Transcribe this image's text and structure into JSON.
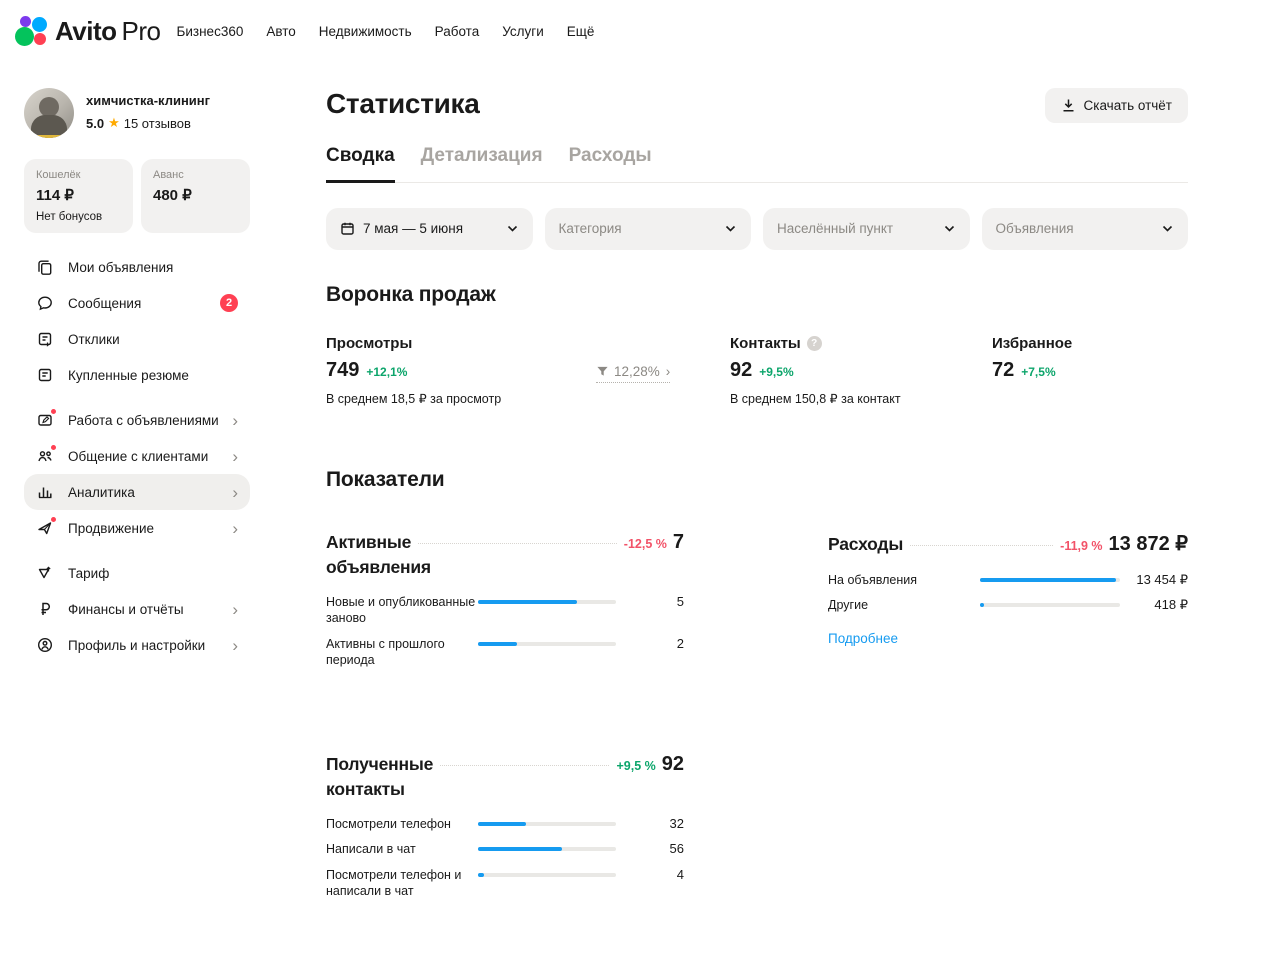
{
  "topnav": {
    "logo": {
      "brand": "Avito",
      "suffix": "Pro"
    },
    "items": [
      "Бизнес360",
      "Авто",
      "Недвижимость",
      "Работа",
      "Услуги",
      "Ещё"
    ]
  },
  "sidebar": {
    "profile": {
      "name": "химчистка-клининг",
      "rating": "5.0",
      "reviews": "15 отзывов"
    },
    "wallet": {
      "label": "Кошелёк",
      "value": "114 ₽",
      "note": "Нет бонусов"
    },
    "advance": {
      "label": "Аванс",
      "value": "480 ₽"
    },
    "menu": [
      {
        "label": "Мои объявления"
      },
      {
        "label": "Сообщения",
        "badge": "2"
      },
      {
        "label": "Отклики"
      },
      {
        "label": "Купленные резюме"
      },
      {
        "label": "Работа с объявлениями"
      },
      {
        "label": "Общение с клиентами"
      },
      {
        "label": "Аналитика"
      },
      {
        "label": "Продвижение"
      },
      {
        "label": "Тариф"
      },
      {
        "label": "Финансы и отчёты"
      },
      {
        "label": "Профиль и настройки"
      }
    ]
  },
  "header": {
    "title": "Статистика",
    "download_label": "Скачать отчёт"
  },
  "tabs": [
    {
      "label": "Сводка"
    },
    {
      "label": "Детализация"
    },
    {
      "label": "Расходы"
    }
  ],
  "filters": [
    {
      "label": "7 мая — 5 июня"
    },
    {
      "label": "Категория"
    },
    {
      "label": "Населённый пункт"
    },
    {
      "label": "Объявления"
    }
  ],
  "funnel": {
    "title": "Воронка продаж",
    "views": {
      "label": "Просмотры",
      "value": "749",
      "delta": "+12,1%",
      "note": "В среднем 18,5 ₽ за просмотр"
    },
    "conversion": {
      "value": "12,28%"
    },
    "contacts": {
      "label": "Контакты",
      "value": "92",
      "delta": "+9,5%",
      "note": "В среднем 150,8 ₽ за контакт"
    },
    "favorites": {
      "label": "Избранное",
      "value": "72",
      "delta": "+7,5%"
    }
  },
  "indicators": {
    "title": "Показатели",
    "active_ads": {
      "title_line1": "Активные",
      "title_line2": "объявления",
      "delta": "-12,5 %",
      "total": "7",
      "rows": [
        {
          "label": "Новые и опубликованные заново",
          "value": "5",
          "pct": 71.4
        },
        {
          "label": "Активны с прошлого периода",
          "value": "2",
          "pct": 28.6
        }
      ]
    },
    "expenses": {
      "title_line1": "Расходы",
      "delta": "-11,9 %",
      "total": "13 872 ₽",
      "more_label": "Подробнее",
      "rows": [
        {
          "label": "На объявления",
          "value": "13 454 ₽",
          "pct": 97
        },
        {
          "label": "Другие",
          "value": "418 ₽",
          "pct": 3
        }
      ]
    },
    "received_contacts": {
      "title_line1": "Полученные",
      "title_line2": "контакты",
      "delta": "+9,5 %",
      "total": "92",
      "rows": [
        {
          "label": "Посмотрели телефон",
          "value": "32",
          "pct": 34.8
        },
        {
          "label": "Написали в чат",
          "value": "56",
          "pct": 60.9
        },
        {
          "label": "Посмотрели телефон и написали в чат",
          "value": "4",
          "pct": 4.3
        }
      ]
    }
  },
  "colors": {
    "accent_blue": "#169bf0",
    "positive_green": "#0ca56b",
    "negative_red": "#f25268",
    "badge_red": "#ff4053",
    "chip_bg": "#f2f1f0",
    "star_yellow": "#ffaa00"
  }
}
